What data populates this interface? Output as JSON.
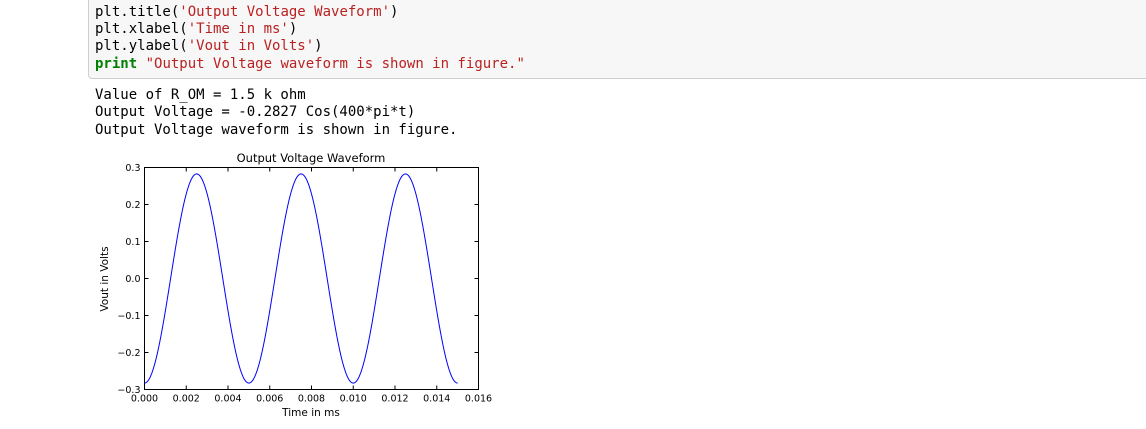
{
  "input_cell": {
    "line1": {
      "prefix": "plt.title(",
      "string": "'Output Voltage Waveform'",
      "suffix": ")"
    },
    "line2": {
      "prefix": "plt.xlabel(",
      "string": "'Time in ms'",
      "suffix": ")"
    },
    "line3": {
      "prefix": "plt.ylabel(",
      "string": "'Vout in Volts'",
      "suffix": ")"
    },
    "line4": {
      "keyword": "print",
      "string": "\"Output Voltage waveform is shown in figure.\""
    }
  },
  "output": {
    "lines": [
      "Value of R_OM = 1.5 k ohm",
      "Output Voltage = -0.2827 Cos(400*pi*t)",
      "Output Voltage waveform is shown in figure."
    ]
  },
  "colors": {
    "string": "#ba2121",
    "keyword": "#008000",
    "line": "#0000ff"
  },
  "chart_data": {
    "type": "line",
    "title": "Output Voltage Waveform",
    "xlabel": "Time in ms",
    "ylabel": "Vout in Volts",
    "xlim": [
      0.0,
      0.016
    ],
    "ylim": [
      -0.3,
      0.3
    ],
    "xticks": [
      "0.000",
      "0.002",
      "0.004",
      "0.006",
      "0.008",
      "0.010",
      "0.012",
      "0.014",
      "0.016"
    ],
    "yticks": [
      "−0.3",
      "−0.2",
      "−0.1",
      "0.0",
      "0.1",
      "0.2",
      "0.3"
    ],
    "series": [
      {
        "function": "-0.2827*cos(400*pi*t)",
        "amplitude": -0.2827,
        "angular_frequency": 1256.637,
        "t_start": 0.0,
        "t_end": 0.015,
        "color": "#0000ff"
      }
    ],
    "grid": false
  }
}
